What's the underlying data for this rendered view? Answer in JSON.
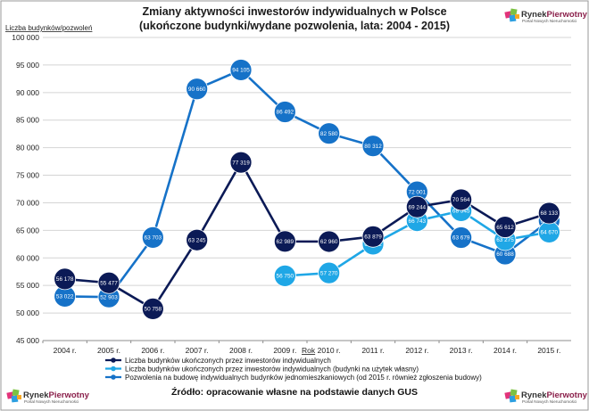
{
  "chart_data": {
    "type": "line",
    "title": "Zmiany aktywności inwestorów indywidualnych w Polsce",
    "subtitle": "(ukończone budynki/wydane pozwolenia, lata: 2004 - 2015)",
    "ylabel": "Liczba budynków/pozwoleń",
    "xlabel": "Rok",
    "ylim": [
      45000,
      100000
    ],
    "yticks": [
      "45 000",
      "50 000",
      "55 000",
      "60 000",
      "65 000",
      "70 000",
      "75 000",
      "80 000",
      "85 000",
      "90 000",
      "95 000",
      "100 000"
    ],
    "ytick_values": [
      45000,
      50000,
      55000,
      60000,
      65000,
      70000,
      75000,
      80000,
      85000,
      90000,
      95000,
      100000
    ],
    "categories": [
      "2004 r.",
      "2005 r.",
      "2006 r.",
      "2007 r.",
      "2008 r.",
      "2009 r.",
      "2010 r.",
      "2011 r.",
      "2012 r.",
      "2013 r.",
      "2014 r.",
      "2015 r."
    ],
    "grid": true,
    "legend_position": "bottom",
    "series": [
      {
        "name": "Liczba budynków ukończonych przez inwestorów indywidualnych",
        "color": "#0b1a56",
        "values": [
          56178,
          55477,
          50758,
          63245,
          77319,
          62989,
          62960,
          63879,
          69244,
          70564,
          65612,
          68133
        ],
        "labels": [
          "56 178",
          "55 477",
          "50 758",
          "63 245",
          "77 319",
          "62 989",
          "62 960",
          "63 879",
          "69 244",
          "70 564",
          "65 612",
          "68 133"
        ]
      },
      {
        "name": "Liczba budynków ukończonych przez inwestorów indywidualnych (budynki na użytek własny)",
        "color": "#1fa7e6",
        "values": [
          null,
          null,
          null,
          null,
          null,
          56750,
          57270,
          62492,
          66743,
          68545,
          63275,
          64670
        ],
        "labels": [
          null,
          null,
          null,
          null,
          null,
          "56 750",
          "57 270",
          "62 492",
          "66 743",
          "68 545",
          "63 275",
          "64 670"
        ]
      },
      {
        "name": "Pozwolenia na budowę indywidualnych budynków jednomieszkaniowych (od 2015 r. również zgłoszenia budowy)",
        "color": "#1672c8",
        "values": [
          53022,
          52903,
          63703,
          90660,
          94105,
          86492,
          82580,
          80312,
          72001,
          63679,
          60688,
          66737
        ],
        "labels": [
          "53 022",
          "52 903",
          "63 703",
          "90 660",
          "94 105",
          "86 492",
          "82 580",
          "80 312",
          "72 001",
          "63 679",
          "60 688",
          "66 737"
        ]
      }
    ]
  },
  "source_text": "Źródło: opracowanie własne na podstawie danych GUS",
  "logo": {
    "name_part1": "Rynek",
    "name_part2": "Pierwotny",
    "tagline": "Portal Nowych Nieruchomości"
  }
}
